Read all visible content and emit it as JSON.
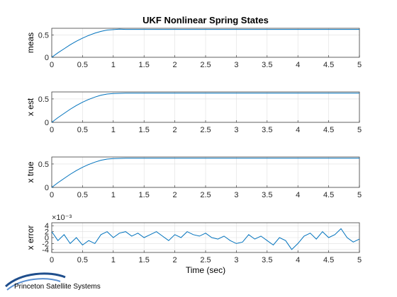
{
  "figure": {
    "title": "UKF Nonlinear Spring States",
    "xlabel": "Time (sec)",
    "logo_text": "Princeton Satellite Systems",
    "line_color": "#0072bd"
  },
  "chart_data": [
    {
      "type": "line",
      "ylabel": "meas",
      "xlim": [
        0,
        5
      ],
      "ylim": [
        0,
        0.65
      ],
      "xticks": [
        "0",
        "0.5",
        "1",
        "1.5",
        "2",
        "2.5",
        "3",
        "3.5",
        "4",
        "4.5",
        "5"
      ],
      "yticks": [
        "0",
        "0.5"
      ],
      "grid": true,
      "series": [
        {
          "x": [
            0,
            0.1,
            0.2,
            0.3,
            0.4,
            0.5,
            0.6,
            0.7,
            0.8,
            0.9,
            1.0,
            1.1,
            1.2,
            1.3,
            1.5,
            2,
            2.5,
            3,
            3.5,
            4,
            4.5,
            5
          ],
          "y": [
            0,
            0.1,
            0.19,
            0.28,
            0.36,
            0.43,
            0.49,
            0.54,
            0.58,
            0.61,
            0.62,
            0.63,
            0.625,
            0.625,
            0.625,
            0.625,
            0.625,
            0.625,
            0.625,
            0.625,
            0.625,
            0.625
          ]
        }
      ]
    },
    {
      "type": "line",
      "ylabel": "x est",
      "xlim": [
        0,
        5
      ],
      "ylim": [
        0,
        0.65
      ],
      "xticks": [
        "0",
        "0.5",
        "1",
        "1.5",
        "2",
        "2.5",
        "3",
        "3.5",
        "4",
        "4.5",
        "5"
      ],
      "yticks": [
        "0",
        "0.5"
      ],
      "grid": true,
      "series": [
        {
          "x": [
            0,
            0.1,
            0.2,
            0.3,
            0.4,
            0.5,
            0.6,
            0.7,
            0.8,
            0.9,
            1.0,
            1.1,
            1.2,
            1.3,
            1.5,
            2,
            2.5,
            3,
            3.5,
            4,
            4.5,
            5
          ],
          "y": [
            0,
            0.1,
            0.19,
            0.28,
            0.36,
            0.43,
            0.49,
            0.54,
            0.58,
            0.605,
            0.615,
            0.62,
            0.625,
            0.625,
            0.625,
            0.625,
            0.625,
            0.625,
            0.625,
            0.625,
            0.625,
            0.625
          ]
        }
      ]
    },
    {
      "type": "line",
      "ylabel": "x true",
      "xlim": [
        0,
        5
      ],
      "ylim": [
        0,
        0.65
      ],
      "xticks": [
        "0",
        "0.5",
        "1",
        "1.5",
        "2",
        "2.5",
        "3",
        "3.5",
        "4",
        "4.5",
        "5"
      ],
      "yticks": [
        "0",
        "0.5"
      ],
      "grid": true,
      "series": [
        {
          "x": [
            0,
            0.1,
            0.2,
            0.3,
            0.4,
            0.5,
            0.6,
            0.7,
            0.8,
            0.9,
            1.0,
            1.1,
            1.2,
            1.3,
            1.5,
            2,
            2.5,
            3,
            3.5,
            4,
            4.5,
            5
          ],
          "y": [
            0,
            0.1,
            0.19,
            0.28,
            0.36,
            0.43,
            0.49,
            0.54,
            0.58,
            0.605,
            0.615,
            0.62,
            0.625,
            0.625,
            0.625,
            0.625,
            0.625,
            0.625,
            0.625,
            0.625,
            0.625,
            0.625
          ]
        }
      ]
    },
    {
      "type": "line",
      "ylabel": "x error",
      "exponent_label": "×10⁻³",
      "xlim": [
        0,
        5
      ],
      "ylim": [
        -5,
        5
      ],
      "xticks": [
        "0",
        "0.5",
        "1",
        "1.5",
        "2",
        "2.5",
        "3",
        "3.5",
        "4",
        "4.5",
        "5"
      ],
      "yticks": [
        "-4",
        "-2",
        "0",
        "2",
        "4"
      ],
      "grid": true,
      "series": [
        {
          "x": [
            0,
            0.1,
            0.2,
            0.3,
            0.4,
            0.5,
            0.6,
            0.7,
            0.8,
            0.9,
            1.0,
            1.1,
            1.2,
            1.3,
            1.4,
            1.5,
            1.6,
            1.7,
            1.8,
            1.9,
            2.0,
            2.1,
            2.2,
            2.3,
            2.4,
            2.5,
            2.6,
            2.7,
            2.8,
            2.9,
            3.0,
            3.1,
            3.2,
            3.3,
            3.4,
            3.5,
            3.6,
            3.7,
            3.8,
            3.9,
            4.0,
            4.1,
            4.2,
            4.3,
            4.4,
            4.5,
            4.6,
            4.7,
            4.8,
            4.9,
            5.0
          ],
          "y": [
            2,
            -1,
            1,
            -2,
            0,
            -2.5,
            -1,
            -2,
            1,
            2,
            0,
            1.5,
            2,
            0.5,
            1.5,
            0,
            1,
            2,
            0.5,
            -1,
            1,
            0,
            2,
            1,
            0.5,
            1.5,
            0,
            -0.5,
            0.5,
            -1,
            -2,
            -1.5,
            1,
            -0.5,
            0.5,
            -1,
            -2.5,
            0,
            -1,
            -4,
            -2,
            0.5,
            1.5,
            -0.5,
            2,
            0,
            1,
            3,
            0,
            -1.5,
            -0.5
          ]
        }
      ]
    }
  ]
}
